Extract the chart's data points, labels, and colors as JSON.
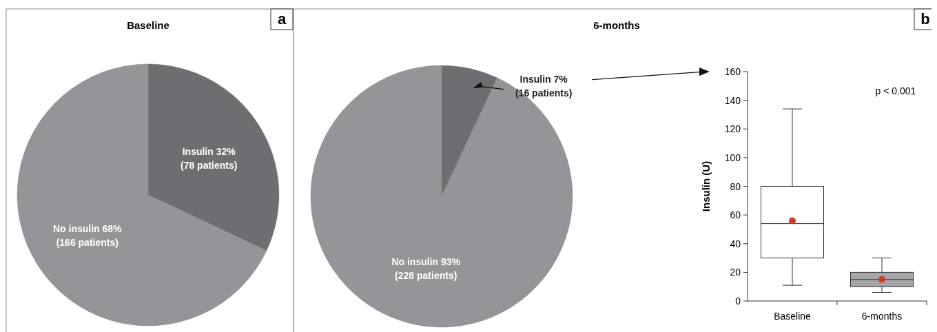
{
  "chart_data": [
    {
      "type": "pie",
      "title": "Baseline",
      "categories": [
        "Insulin",
        "No insulin"
      ],
      "values": [
        32,
        68
      ],
      "colors": [
        "#6d6e71",
        "#939598"
      ],
      "value_labels": [
        "32%\n(78 patients)",
        "68%\n(166 patients)"
      ],
      "annotations": [
        "a"
      ]
    },
    {
      "type": "pie",
      "title": "6-months",
      "categories": [
        "Insulin",
        "No insulin"
      ],
      "values": [
        7,
        93
      ],
      "colors": [
        "#6d6e71",
        "#939598"
      ],
      "value_labels": [
        "7%\n(16 patients)",
        "93%\n(228 patients)"
      ]
    },
    {
      "type": "box",
      "categories": [
        "Baseline",
        "6-months"
      ],
      "ylabel": "Insulin (U)",
      "ylim": [
        0,
        160
      ],
      "yticks": [
        0,
        20,
        40,
        60,
        80,
        100,
        120,
        140,
        160
      ],
      "colors": [
        "#ffffff",
        "#a6a6a6"
      ],
      "boxes": [
        {
          "low": 11,
          "q1": 30,
          "median": 54,
          "q3": 80,
          "high": 134
        },
        {
          "low": 6,
          "q1": 10,
          "median": 15,
          "q3": 20,
          "high": 30
        }
      ],
      "series": [
        {
          "type": "scatter",
          "x": [
            "Baseline",
            "6-months"
          ],
          "values": [
            56,
            15
          ],
          "color": "#d03a2f"
        }
      ],
      "annotations": [
        "b",
        "p < 0.001"
      ]
    }
  ]
}
